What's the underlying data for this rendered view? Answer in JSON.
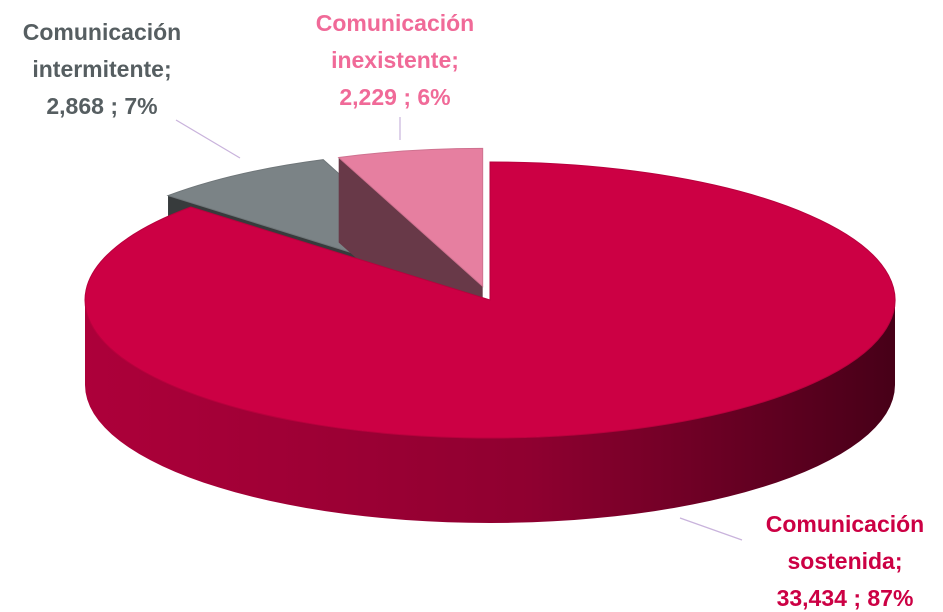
{
  "chart_data": {
    "type": "pie3d",
    "categories": [
      "Comunicación sostenida;",
      "Comunicación intermitente;",
      "Comunicación inexistente;"
    ],
    "values": [
      33434,
      2868,
      2229
    ],
    "value_labels": [
      "33,434 ; 87%",
      "2,868 ; 7%",
      "2,229 ; 6%"
    ],
    "colors": [
      "#cc0044",
      "#7b8386",
      "#e67fa0"
    ],
    "label_colors": [
      "#cc0044",
      "#565e61",
      "#f06a98"
    ]
  }
}
